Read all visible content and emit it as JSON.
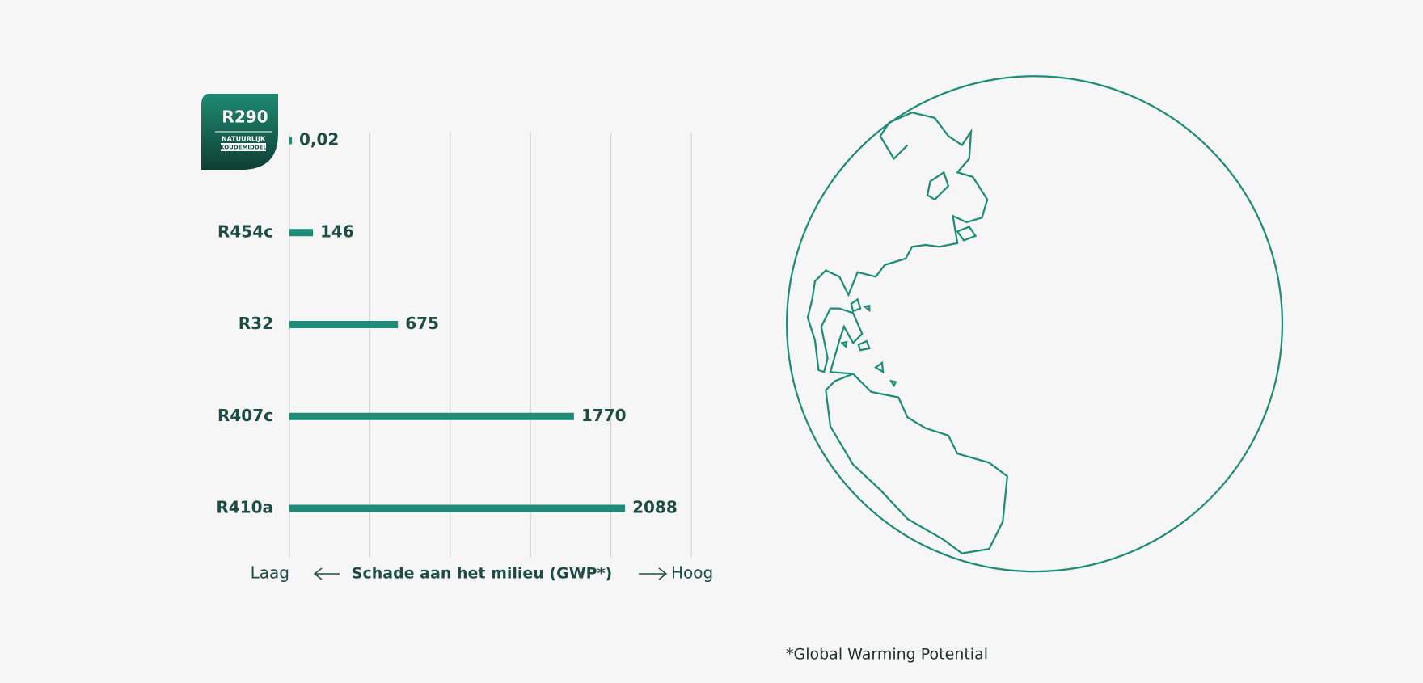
{
  "chart_data": {
    "type": "bar",
    "orientation": "horizontal",
    "categories": [
      "R290",
      "R454c",
      "R32",
      "R407c",
      "R410a"
    ],
    "values": [
      0.02,
      146,
      675,
      1770,
      2088
    ],
    "value_labels": [
      "0,02",
      "146",
      "675",
      "1770",
      "2088"
    ],
    "color": "#1e8c76",
    "xlim": [
      0,
      2500
    ],
    "xticks": [
      0,
      500,
      1000,
      1500,
      2000,
      2500
    ],
    "grid": true,
    "x_label": "Schade aan het milieu (GWP*)",
    "x_low": "Laag",
    "x_high": "Hoog",
    "badge": {
      "line1": "NATUURLIJK",
      "line2": "KOUDEMIDDEL"
    },
    "footnote": "*Global Warming Potential"
  }
}
